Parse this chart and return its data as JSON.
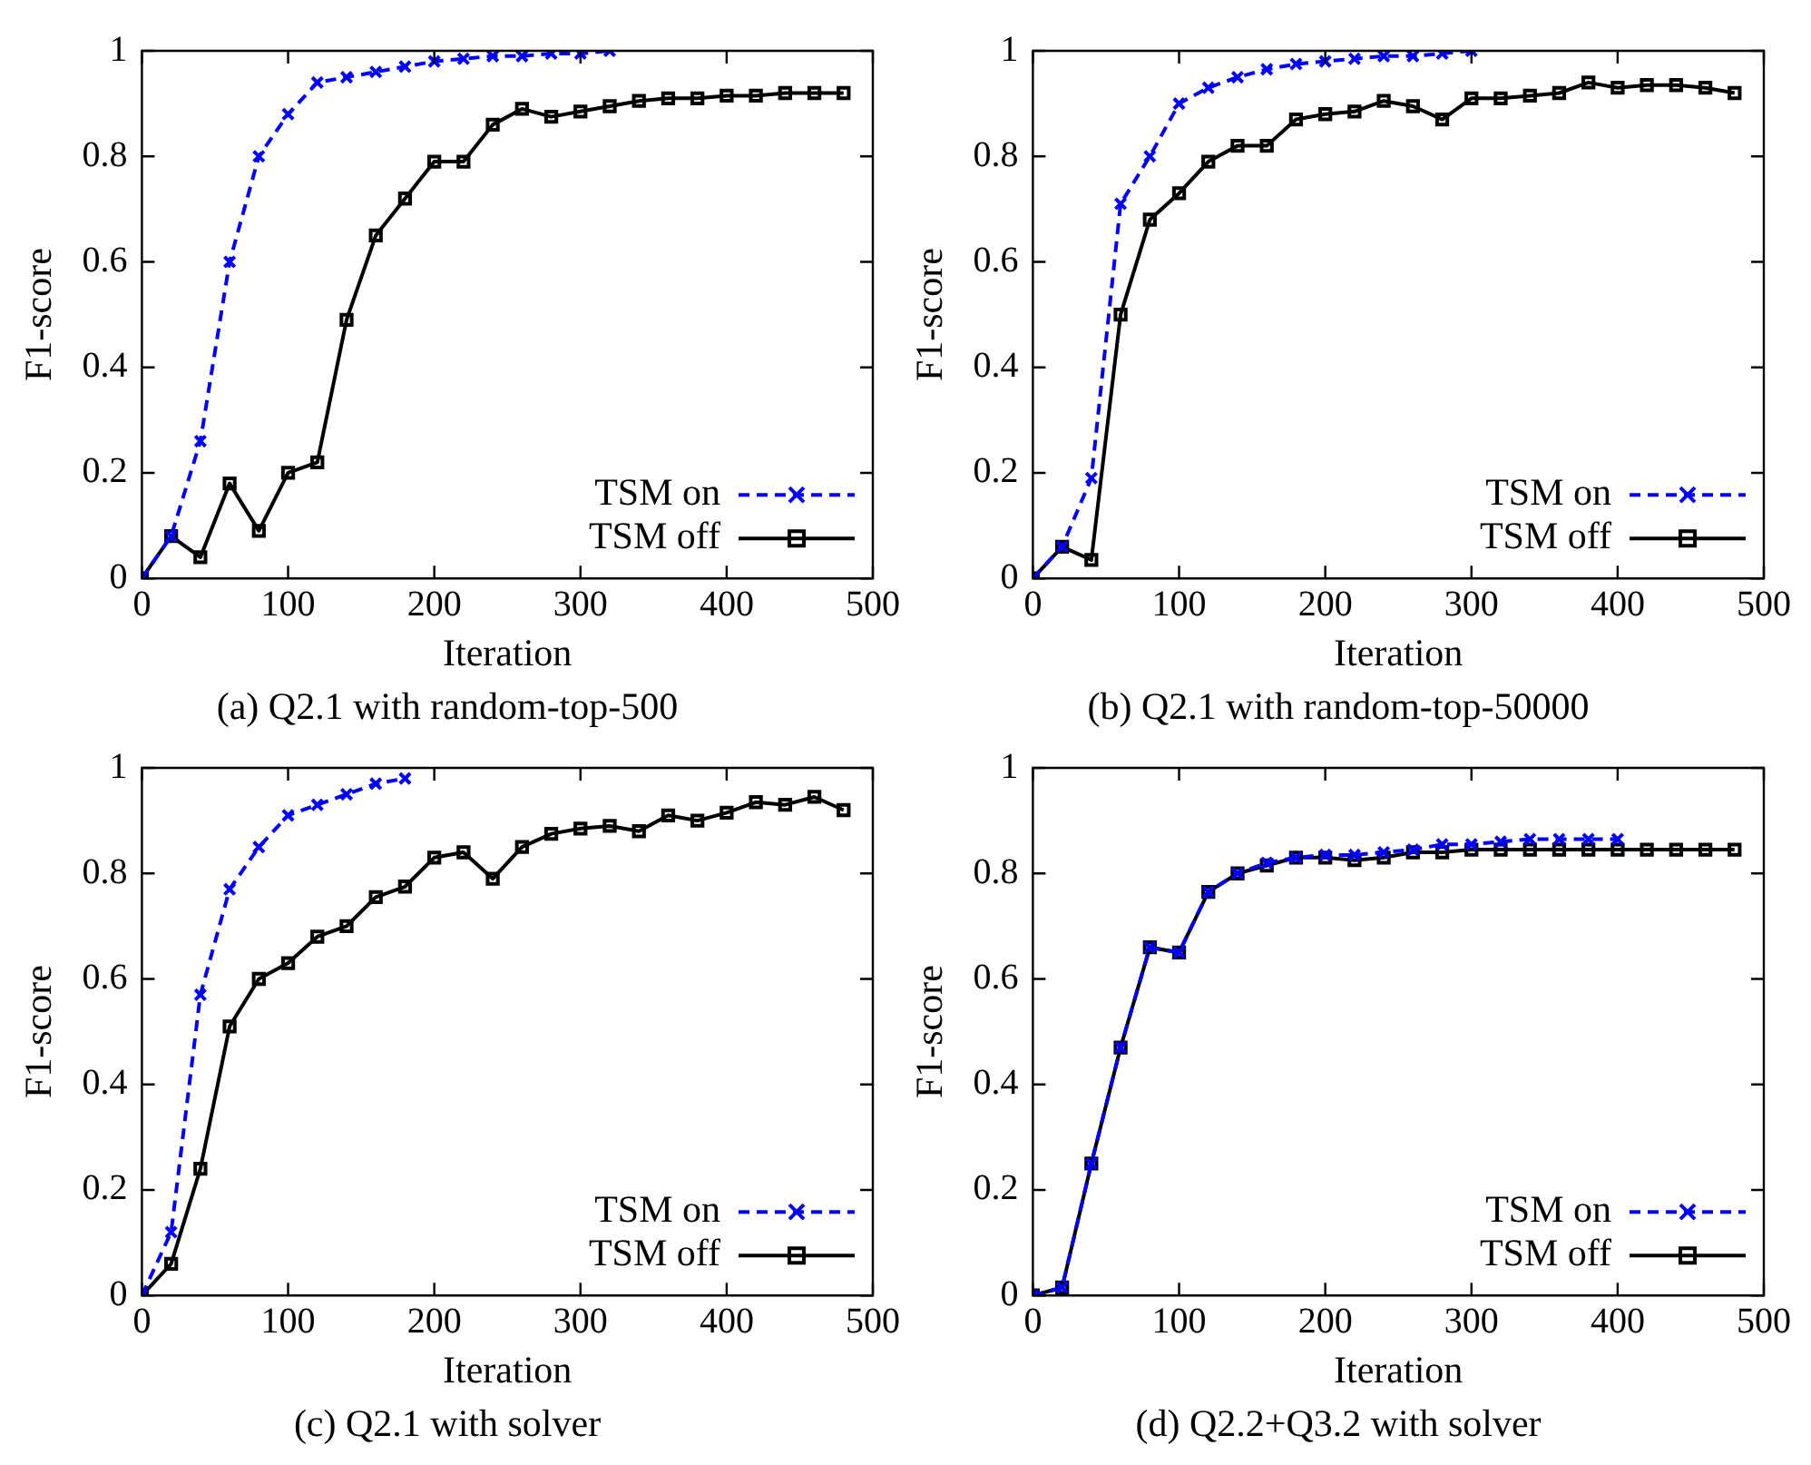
{
  "chart_data": [
    {
      "type": "line",
      "title": "(a) Q2.1 with random-top-500",
      "xlabel": "Iteration",
      "ylabel": "F1-score",
      "xlim": [
        0,
        500
      ],
      "xticks": [
        0,
        100,
        200,
        300,
        400,
        500
      ],
      "ylim": [
        0,
        1
      ],
      "yticks": [
        0,
        0.2,
        0.4,
        0.6,
        0.8,
        1
      ],
      "legend": "bottom right",
      "series": [
        {
          "name": "TSM on",
          "color": "#0000ff",
          "marker": "cross",
          "line_style": "dashed",
          "x": [
            0,
            20,
            40,
            60,
            80,
            100,
            120,
            140,
            160,
            180,
            200,
            220,
            240,
            260,
            280,
            300,
            320
          ],
          "values": [
            0,
            0.08,
            0.26,
            0.6,
            0.8,
            0.88,
            0.94,
            0.95,
            0.96,
            0.97,
            0.98,
            0.985,
            0.99,
            0.99,
            0.995,
            0.995,
            1
          ]
        },
        {
          "name": "TSM off",
          "color": "#000000",
          "marker": "square",
          "line_style": "solid",
          "x": [
            0,
            20,
            40,
            60,
            80,
            100,
            120,
            140,
            160,
            180,
            200,
            220,
            240,
            260,
            280,
            300,
            320,
            340,
            360,
            380,
            400,
            420,
            440,
            460,
            480
          ],
          "values": [
            0,
            0.08,
            0.04,
            0.18,
            0.09,
            0.2,
            0.22,
            0.49,
            0.65,
            0.72,
            0.79,
            0.79,
            0.86,
            0.89,
            0.875,
            0.885,
            0.895,
            0.905,
            0.91,
            0.91,
            0.915,
            0.915,
            0.92,
            0.92,
            0.92
          ]
        }
      ]
    },
    {
      "type": "line",
      "title": "(b) Q2.1 with random-top-50000",
      "xlabel": "Iteration",
      "ylabel": "F1-score",
      "xlim": [
        0,
        500
      ],
      "xticks": [
        0,
        100,
        200,
        300,
        400,
        500
      ],
      "ylim": [
        0,
        1
      ],
      "yticks": [
        0,
        0.2,
        0.4,
        0.6,
        0.8,
        1
      ],
      "legend": "bottom right",
      "series": [
        {
          "name": "TSM on",
          "color": "#0000ff",
          "marker": "cross",
          "line_style": "dashed",
          "x": [
            0,
            20,
            40,
            60,
            80,
            100,
            120,
            140,
            160,
            180,
            200,
            220,
            240,
            260,
            280,
            300
          ],
          "values": [
            0,
            0.06,
            0.19,
            0.71,
            0.8,
            0.9,
            0.93,
            0.95,
            0.965,
            0.975,
            0.98,
            0.985,
            0.99,
            0.99,
            0.995,
            1
          ]
        },
        {
          "name": "TSM off",
          "color": "#000000",
          "marker": "square",
          "line_style": "solid",
          "x": [
            0,
            20,
            40,
            60,
            80,
            100,
            120,
            140,
            160,
            180,
            200,
            220,
            240,
            260,
            280,
            300,
            320,
            340,
            360,
            380,
            400,
            420,
            440,
            460,
            480
          ],
          "values": [
            0,
            0.06,
            0.035,
            0.5,
            0.68,
            0.73,
            0.79,
            0.82,
            0.82,
            0.87,
            0.88,
            0.885,
            0.905,
            0.895,
            0.87,
            0.91,
            0.91,
            0.915,
            0.92,
            0.94,
            0.93,
            0.935,
            0.935,
            0.93,
            0.92
          ]
        }
      ]
    },
    {
      "type": "line",
      "title": "(c) Q2.1 with solver",
      "xlabel": "Iteration",
      "ylabel": "F1-score",
      "xlim": [
        0,
        500
      ],
      "xticks": [
        0,
        100,
        200,
        300,
        400,
        500
      ],
      "ylim": [
        0,
        1
      ],
      "yticks": [
        0,
        0.2,
        0.4,
        0.6,
        0.8,
        1
      ],
      "legend": "bottom right",
      "series": [
        {
          "name": "TSM on",
          "color": "#0000ff",
          "marker": "cross",
          "line_style": "dashed",
          "x": [
            0,
            20,
            40,
            60,
            80,
            100,
            120,
            140,
            160,
            180
          ],
          "values": [
            0,
            0.12,
            0.57,
            0.77,
            0.85,
            0.91,
            0.93,
            0.95,
            0.97,
            0.98
          ]
        },
        {
          "name": "TSM off",
          "color": "#000000",
          "marker": "square",
          "line_style": "solid",
          "x": [
            0,
            20,
            40,
            60,
            80,
            100,
            120,
            140,
            160,
            180,
            200,
            220,
            240,
            260,
            280,
            300,
            320,
            340,
            360,
            380,
            400,
            420,
            440,
            460,
            480
          ],
          "values": [
            0,
            0.06,
            0.24,
            0.51,
            0.6,
            0.63,
            0.68,
            0.7,
            0.755,
            0.775,
            0.83,
            0.84,
            0.79,
            0.85,
            0.875,
            0.885,
            0.89,
            0.88,
            0.91,
            0.9,
            0.915,
            0.935,
            0.93,
            0.945,
            0.92
          ]
        }
      ]
    },
    {
      "type": "line",
      "title": "(d) Q2.2+Q3.2 with solver",
      "xlabel": "Iteration",
      "ylabel": "F1-score",
      "xlim": [
        0,
        500
      ],
      "xticks": [
        0,
        100,
        200,
        300,
        400,
        500
      ],
      "ylim": [
        0,
        1
      ],
      "yticks": [
        0,
        0.2,
        0.4,
        0.6,
        0.8,
        1
      ],
      "legend": "bottom right",
      "series": [
        {
          "name": "TSM on",
          "color": "#0000ff",
          "marker": "cross",
          "line_style": "dashed",
          "x": [
            0,
            20,
            40,
            60,
            80,
            100,
            120,
            140,
            160,
            180,
            200,
            220,
            240,
            260,
            280,
            300,
            320,
            340,
            360,
            380,
            400
          ],
          "values": [
            0,
            0.015,
            0.25,
            0.47,
            0.66,
            0.65,
            0.765,
            0.8,
            0.82,
            0.83,
            0.835,
            0.835,
            0.84,
            0.845,
            0.855,
            0.855,
            0.86,
            0.865,
            0.865,
            0.865,
            0.865
          ]
        },
        {
          "name": "TSM off",
          "color": "#000000",
          "marker": "square",
          "line_style": "solid",
          "x": [
            0,
            20,
            40,
            60,
            80,
            100,
            120,
            140,
            160,
            180,
            200,
            220,
            240,
            260,
            280,
            300,
            320,
            340,
            360,
            380,
            400,
            420,
            440,
            460,
            480
          ],
          "values": [
            0,
            0.015,
            0.25,
            0.47,
            0.66,
            0.65,
            0.765,
            0.8,
            0.815,
            0.83,
            0.83,
            0.825,
            0.83,
            0.84,
            0.84,
            0.845,
            0.845,
            0.845,
            0.845,
            0.845,
            0.845,
            0.845,
            0.845,
            0.845,
            0.845
          ]
        }
      ]
    }
  ]
}
